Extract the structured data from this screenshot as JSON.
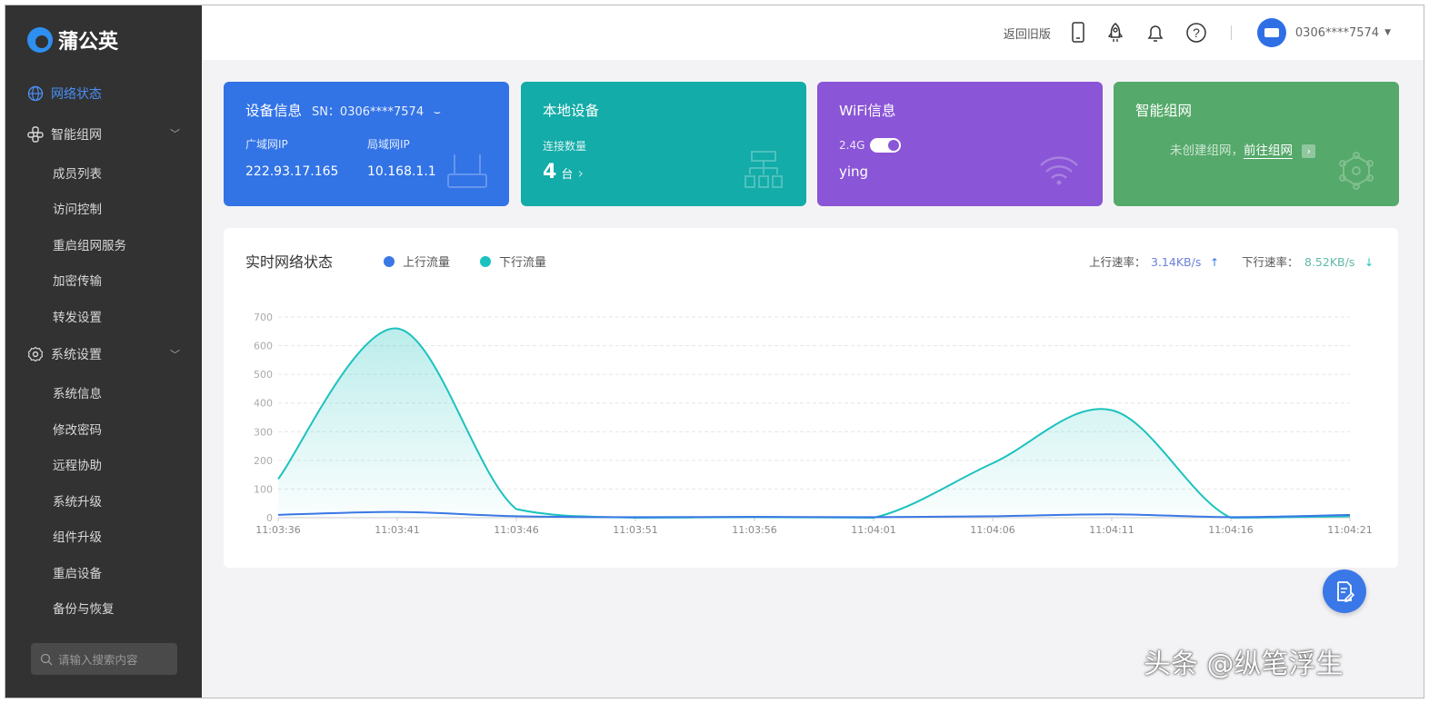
{
  "app": {
    "name": "蒲公英"
  },
  "sidebar": {
    "groups": [
      {
        "label": "网络状态",
        "icon": "globe-icon",
        "active": true,
        "items": []
      },
      {
        "label": "智能组网",
        "icon": "network-icon",
        "items": [
          "成员列表",
          "访问控制",
          "重启组网服务",
          "加密传输",
          "转发设置"
        ]
      },
      {
        "label": "系统设置",
        "icon": "gear-icon",
        "items": [
          "系统信息",
          "修改密码",
          "远程协助",
          "系统升级",
          "组件升级",
          "重启设备",
          "备份与恢复"
        ]
      }
    ],
    "search_placeholder": "请输入搜索内容"
  },
  "header": {
    "back_old": "返回旧版",
    "user": "0306****7574"
  },
  "cards": {
    "device": {
      "title": "设备信息",
      "sn": "SN：0306****7574",
      "wan_label": "广域网IP",
      "wan": "222.93.17.165",
      "lan_label": "局域网IP",
      "lan": "10.168.1.1",
      "color": "#3273e6"
    },
    "local": {
      "title": "本地设备",
      "count_label": "连接数量",
      "count": "4",
      "unit": "台",
      "color": "#13aca8"
    },
    "wifi": {
      "title": "WiFi信息",
      "band": "2.4G",
      "ssid": "ying",
      "color": "#8a55d6"
    },
    "mesh": {
      "title": "智能组网",
      "text": "未创建组网，",
      "link": "前往组网",
      "color": "#55a96a"
    }
  },
  "chart_data": {
    "type": "area",
    "title": "实时网络状态",
    "legend": [
      {
        "name": "上行流量",
        "color": "#3a78e6"
      },
      {
        "name": "下行流量",
        "color": "#1cc2be"
      }
    ],
    "legend_placement": "top",
    "up_rate_label": "上行速率：",
    "up_rate": "3.14KB/s",
    "down_rate_label": "下行速率：",
    "down_rate": "8.52KB/s",
    "x": [
      "11:03:36",
      "11:03:41",
      "11:03:46",
      "11:03:51",
      "11:03:56",
      "11:04:01",
      "11:04:06",
      "11:04:11",
      "11:04:16",
      "11:04:21"
    ],
    "yticks": [
      0,
      100,
      200,
      300,
      400,
      500,
      600,
      700
    ],
    "ylim": [
      0,
      700
    ],
    "grid": true,
    "series": [
      {
        "name": "上行流量",
        "values": [
          10,
          20,
          5,
          2,
          3,
          2,
          5,
          12,
          2,
          10
        ]
      },
      {
        "name": "下行流量",
        "values": [
          135,
          660,
          30,
          0,
          2,
          0,
          190,
          375,
          0,
          5
        ]
      }
    ]
  },
  "watermark": "头条 @纵笔浮生"
}
